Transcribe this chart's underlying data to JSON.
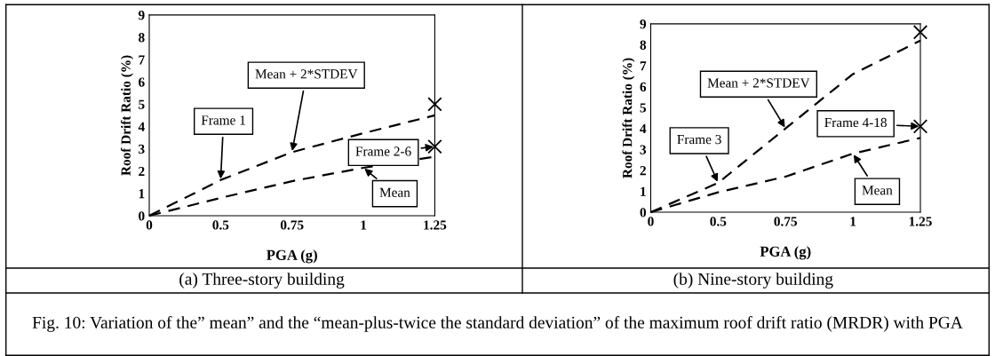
{
  "chart_data": [
    {
      "type": "line",
      "title": "(a) Three-story building",
      "xlabel": "PGA (g)",
      "ylabel": "Roof Drift Ratio (%)",
      "categories": [
        "0",
        "0.5",
        "0.75",
        "1",
        "1.25"
      ],
      "series": [
        {
          "color": "#000000",
          "values": [
            0,
            1.6,
            2.85,
            3.7,
            4.5
          ]
        },
        {
          "color": "#000000",
          "values": [
            0,
            0.8,
            1.55,
            2.15,
            2.65
          ]
        },
        {
          "type": "scatter",
          "marker": "cross",
          "color": "#000000",
          "x": [
            "1.25",
            "1.25"
          ],
          "values": [
            5.0,
            3.1
          ]
        }
      ],
      "ylim": [
        0,
        9
      ],
      "yticks": [
        0,
        1,
        2,
        3,
        4,
        5,
        6,
        7,
        8,
        9
      ],
      "grid": false,
      "marker": "none",
      "line_style": "dashed",
      "annotations": [
        {
          "text": "Mean + 2*STDEV",
          "x": "0.75",
          "y": 2.85
        },
        {
          "text": "Frame 1",
          "x": "0.5",
          "y": 1.6
        },
        {
          "text": "Frame 2-6",
          "x": "1.25",
          "y": 3.1
        },
        {
          "text": "Mean",
          "x": "1",
          "y": 2.15
        }
      ]
    },
    {
      "type": "line",
      "title": "(b) Nine-story building",
      "xlabel": "PGA (g)",
      "ylabel": "Roof Drift Ratio (%)",
      "categories": [
        "0",
        "0.5",
        "0.75",
        "1",
        "1.25"
      ],
      "series": [
        {
          "color": "#000000",
          "values": [
            0,
            1.4,
            4.0,
            6.6,
            8.2
          ]
        },
        {
          "color": "#000000",
          "values": [
            0,
            0.95,
            1.7,
            2.8,
            3.55
          ]
        },
        {
          "type": "scatter",
          "marker": "cross",
          "color": "#000000",
          "x": [
            "1.25",
            "1.25"
          ],
          "values": [
            8.6,
            4.1
          ]
        }
      ],
      "ylim": [
        0,
        9
      ],
      "yticks": [
        0,
        1,
        2,
        3,
        4,
        5,
        6,
        7,
        8,
        9
      ],
      "grid": false,
      "marker": "none",
      "line_style": "dashed",
      "annotations": [
        {
          "text": "Mean + 2*STDEV",
          "x": "0.75",
          "y": 4.0
        },
        {
          "text": "Frame 3",
          "x": "0.5",
          "y": 1.4
        },
        {
          "text": "Frame 4-18",
          "x": "1.25",
          "y": 4.1
        },
        {
          "text": "Mean",
          "x": "1",
          "y": 2.8
        },
        "Fig. 10: Variation of the” mean” and the “mean-plus-twice the standard deviation” of the maximum roof drift ratio (MRDR) with PGA"
      ]
    }
  ]
}
